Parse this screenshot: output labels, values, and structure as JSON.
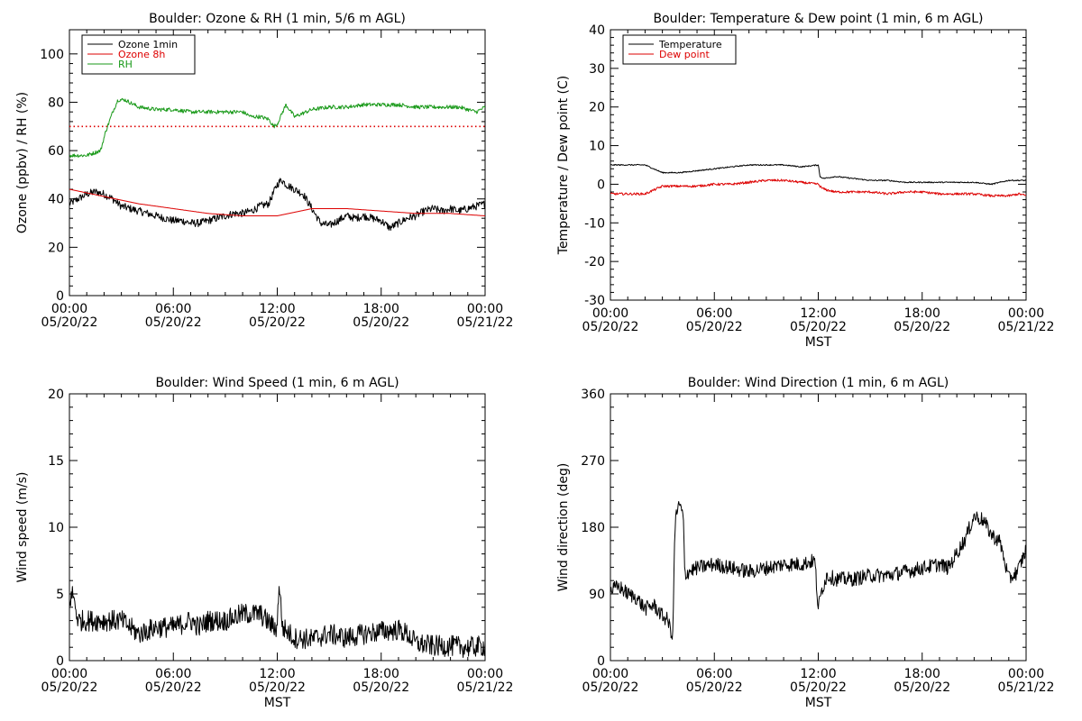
{
  "colors": {
    "ozone_1min": "#000000",
    "ozone_8h": "#dd0000",
    "rh": "#1a9a1a",
    "temperature": "#000000",
    "dew_point": "#dd0000",
    "wind": "#000000",
    "reference_line": "#dd0000"
  },
  "chart_data": [
    {
      "id": "ozone_rh",
      "type": "line",
      "title": "Boulder: Ozone & RH (1 min, 5/6 m AGL)",
      "ylabel": "Ozone (ppbv) / RH (%)",
      "xlabel": "",
      "xlim": [
        0,
        24
      ],
      "ylim": [
        0,
        110
      ],
      "yticks": [
        0,
        20,
        40,
        60,
        80,
        100
      ],
      "xtick_labels": [
        [
          "00:00",
          "05/20/22"
        ],
        [
          "06:00",
          "05/20/22"
        ],
        [
          "12:00",
          "05/20/22"
        ],
        [
          "18:00",
          "05/20/22"
        ],
        [
          "00:00",
          "05/21/22"
        ]
      ],
      "legend": {
        "placement": "top-left",
        "entries": [
          "Ozone 1min",
          "Ozone 8h",
          "RH"
        ]
      },
      "reference_line": {
        "y": 70,
        "style": "dotted",
        "color_key": "reference_line"
      },
      "series": [
        {
          "name": "Ozone 1min",
          "color_key": "ozone_1min",
          "noise": 1.6,
          "x": [
            0,
            0.5,
            1,
            1.5,
            2,
            2.5,
            3,
            3.5,
            4,
            4.5,
            5,
            5.5,
            6,
            6.5,
            7,
            7.5,
            8,
            8.5,
            9,
            9.5,
            10,
            10.5,
            11,
            11.5,
            12,
            12.25,
            12.5,
            13,
            13.5,
            14,
            14.5,
            15,
            15.5,
            16,
            16.5,
            17,
            17.5,
            18,
            18.5,
            19,
            19.5,
            20,
            20.5,
            21,
            21.5,
            22,
            22.5,
            23,
            23.5,
            24
          ],
          "y": [
            38,
            40,
            42,
            43,
            42,
            40,
            37,
            36,
            35,
            34,
            33,
            32,
            31,
            31,
            30,
            30,
            31,
            32,
            33,
            34,
            34,
            35,
            37,
            38,
            46,
            48,
            46,
            44,
            42,
            36,
            30,
            29,
            31,
            33,
            32,
            33,
            32,
            31,
            28,
            30,
            32,
            33,
            35,
            36,
            35,
            36,
            35,
            36,
            37,
            38
          ]
        },
        {
          "name": "Ozone 8h",
          "color_key": "ozone_8h",
          "noise": 0,
          "x": [
            0,
            2,
            4,
            6,
            8,
            10,
            12,
            14,
            16,
            18,
            20,
            22,
            24
          ],
          "y": [
            44,
            41,
            38,
            36,
            34,
            33,
            33,
            36,
            36,
            35,
            34,
            34,
            33
          ]
        },
        {
          "name": "RH",
          "color_key": "rh",
          "noise": 0.8,
          "x": [
            0,
            1,
            1.8,
            2.1,
            2.5,
            2.8,
            3.2,
            4,
            5,
            6,
            7,
            8,
            9,
            10,
            10.5,
            11,
            11.5,
            11.8,
            12,
            12.5,
            13,
            14,
            15,
            16,
            17,
            18,
            19,
            20,
            21,
            22,
            22.5,
            23,
            23.5,
            24
          ],
          "y": [
            58,
            58,
            60,
            68,
            76,
            81,
            81,
            78,
            77,
            77,
            76,
            76,
            76,
            76,
            74,
            74,
            73,
            70,
            71,
            79,
            74,
            77,
            78,
            78,
            79,
            79,
            79,
            78,
            78,
            78,
            78,
            77,
            76,
            78
          ]
        }
      ]
    },
    {
      "id": "temp_dew",
      "type": "line",
      "title": "Boulder: Temperature & Dew point (1 min, 6 m AGL)",
      "ylabel": "Temperature / Dew point (C)",
      "xlabel": "MST",
      "xlim": [
        0,
        24
      ],
      "ylim": [
        -30,
        40
      ],
      "yticks": [
        -30,
        -20,
        -10,
        0,
        10,
        20,
        30,
        40
      ],
      "xtick_labels": [
        [
          "00:00",
          "05/20/22"
        ],
        [
          "06:00",
          "05/20/22"
        ],
        [
          "12:00",
          "05/20/22"
        ],
        [
          "18:00",
          "05/20/22"
        ],
        [
          "00:00",
          "05/21/22"
        ]
      ],
      "legend": {
        "placement": "top-left",
        "entries": [
          "Temperature",
          "Dew point"
        ]
      },
      "series": [
        {
          "name": "Temperature",
          "color_key": "temperature",
          "noise": 0.15,
          "x": [
            0,
            1,
            2,
            2.5,
            3,
            3.5,
            4,
            5,
            6,
            7,
            8,
            9,
            10,
            11,
            12,
            12.1,
            12.3,
            13,
            14,
            15,
            16,
            17,
            18,
            19,
            20,
            21,
            22,
            23,
            24
          ],
          "y": [
            5,
            5,
            5,
            4,
            3,
            3,
            3,
            3.5,
            4,
            4.5,
            5,
            5,
            5,
            4.5,
            5,
            2,
            1.5,
            2,
            1.5,
            1,
            1,
            0.5,
            0.5,
            0.5,
            0.5,
            0.5,
            0,
            1,
            1
          ]
        },
        {
          "name": "Dew point",
          "color_key": "dew_point",
          "noise": 0.3,
          "x": [
            0,
            1,
            2,
            2.5,
            3,
            3.5,
            4,
            5,
            6,
            7,
            8,
            9,
            10,
            11,
            12,
            12.2,
            12.5,
            13,
            14,
            15,
            16,
            17,
            18,
            19,
            20,
            21,
            22,
            23,
            23.6,
            24
          ],
          "y": [
            -2.5,
            -2.5,
            -2.5,
            -1.5,
            -0.5,
            -0.5,
            -0.5,
            -0.5,
            0,
            0,
            0.5,
            1,
            1,
            0.5,
            0,
            -1,
            -1.5,
            -2,
            -2,
            -2,
            -2.5,
            -2,
            -2,
            -2.5,
            -2.5,
            -2.5,
            -3,
            -3,
            -2.5,
            -3
          ]
        }
      ]
    },
    {
      "id": "wind_speed",
      "type": "line",
      "title": "Boulder: Wind Speed (1 min, 6 m AGL)",
      "ylabel": "Wind speed (m/s)",
      "xlabel": "MST",
      "xlim": [
        0,
        24
      ],
      "ylim": [
        0,
        20
      ],
      "yticks": [
        0,
        5,
        10,
        15,
        20
      ],
      "xtick_labels": [
        [
          "00:00",
          "05/20/22"
        ],
        [
          "06:00",
          "05/20/22"
        ],
        [
          "12:00",
          "05/20/22"
        ],
        [
          "18:00",
          "05/20/22"
        ],
        [
          "00:00",
          "05/21/22"
        ]
      ],
      "series": [
        {
          "name": "",
          "color_key": "wind",
          "noise": 0.8,
          "x": [
            0,
            0.2,
            0.5,
            1,
            2,
            3,
            3.5,
            4,
            5,
            6,
            7,
            7.5,
            8,
            9,
            10,
            11,
            11.8,
            12,
            12.1,
            12.3,
            13,
            14,
            15,
            16,
            17,
            18,
            19,
            19.5,
            20,
            21,
            22,
            23,
            24
          ],
          "y": [
            4.5,
            5,
            3,
            3,
            3,
            3,
            2.5,
            2,
            2.5,
            2.5,
            3,
            2.5,
            3,
            3,
            3.5,
            3.5,
            2.5,
            2.5,
            6,
            2.5,
            1.7,
            1.6,
            2,
            1.7,
            2,
            2.2,
            2.3,
            2,
            1.3,
            1.1,
            1.1,
            1,
            1.1
          ]
        }
      ]
    },
    {
      "id": "wind_direction",
      "type": "line",
      "title": "Boulder: Wind Direction (1 min, 6 m AGL)",
      "ylabel": "Wind direction (deg)",
      "xlabel": "MST",
      "xlim": [
        0,
        24
      ],
      "ylim": [
        0,
        360
      ],
      "yticks": [
        0,
        90,
        180,
        270,
        360
      ],
      "xtick_labels": [
        [
          "00:00",
          "05/20/22"
        ],
        [
          "06:00",
          "05/20/22"
        ],
        [
          "12:00",
          "05/20/22"
        ],
        [
          "18:00",
          "05/20/22"
        ],
        [
          "00:00",
          "05/21/22"
        ]
      ],
      "series": [
        {
          "name": "",
          "color_key": "wind",
          "noise": 10,
          "x": [
            0,
            0.5,
            1,
            1.5,
            2,
            2.5,
            3,
            3.3,
            3.5,
            3.6,
            3.7,
            3.8,
            4,
            4.2,
            4.3,
            4.5,
            5,
            6,
            7,
            8,
            9,
            10,
            11,
            11.8,
            12,
            12.2,
            12.5,
            13,
            14,
            15,
            16,
            17,
            18,
            19,
            19.5,
            20,
            20.5,
            21,
            21.5,
            22,
            22.5,
            23,
            23.5,
            24
          ],
          "y": [
            95,
            100,
            90,
            85,
            70,
            75,
            60,
            55,
            40,
            30,
            160,
            200,
            210,
            195,
            115,
            120,
            125,
            130,
            125,
            120,
            125,
            130,
            130,
            135,
            70,
            95,
            115,
            110,
            110,
            115,
            115,
            120,
            125,
            130,
            125,
            145,
            165,
            195,
            190,
            170,
            160,
            110,
            120,
            150
          ]
        }
      ]
    }
  ]
}
